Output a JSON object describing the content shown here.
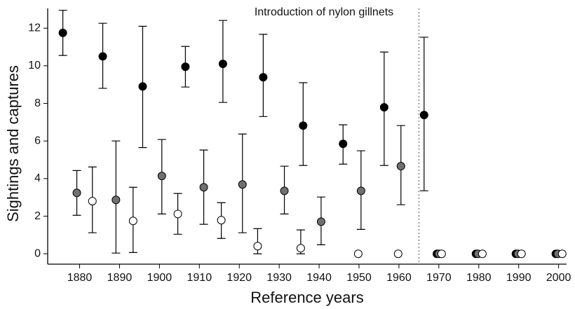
{
  "chart_data": {
    "type": "scatter",
    "xlabel": "Reference years",
    "ylabel": "Sightings and captures",
    "annotation": "Introduction of nylon gillnets",
    "vline": 1965,
    "xlim": [
      1872,
      2002
    ],
    "ylim": [
      -0.55,
      13.05
    ],
    "xticks": [
      1880,
      1890,
      1900,
      1910,
      1920,
      1930,
      1940,
      1950,
      1960,
      1970,
      1980,
      1990,
      2000
    ],
    "yticks": [
      0,
      2,
      4,
      6,
      8,
      10,
      12
    ],
    "series": [
      {
        "color": "#000000",
        "x": [
          1875.8,
          1885.8,
          1895.8,
          1906.5,
          1915.9,
          1926,
          1936,
          1946,
          1956.3,
          1966.3,
          1969.5,
          1979.3,
          1989.3,
          1999.3
        ],
        "values": [
          11.75,
          10.5,
          8.9,
          9.95,
          10.1,
          9.39,
          6.82,
          5.85,
          7.79,
          7.38,
          0,
          0,
          0,
          0
        ],
        "low": [
          10.55,
          8.8,
          5.65,
          8.87,
          8.05,
          7.3,
          4.7,
          4.77,
          4.7,
          3.35,
          null,
          null,
          null,
          null
        ],
        "high": [
          12.95,
          12.26,
          12.1,
          11.03,
          12.41,
          11.67,
          9.1,
          6.86,
          10.73,
          11.52,
          null,
          null,
          null,
          null
        ]
      },
      {
        "color": "#707070",
        "x": [
          1879.3,
          1889.1,
          1900.6,
          1911.1,
          1920.8,
          1931.3,
          1940.5,
          1950.5,
          1960.5,
          1970,
          1979.8,
          1989.8,
          1999.8
        ],
        "values": [
          3.24,
          2.87,
          4.14,
          3.54,
          3.69,
          3.35,
          1.71,
          3.35,
          4.66,
          0,
          0,
          0,
          0
        ],
        "low": [
          2.05,
          0.04,
          2.12,
          1.57,
          1.12,
          2.12,
          0.48,
          1.3,
          2.61,
          null,
          null,
          null,
          null
        ],
        "high": [
          4.43,
          6.0,
          6.08,
          5.52,
          6.37,
          4.66,
          3.02,
          5.48,
          6.82,
          null,
          null,
          null,
          null
        ]
      },
      {
        "color": "#ffffff",
        "x": [
          1883.2,
          1893.4,
          1904.6,
          1915.5,
          1924.6,
          1935.4,
          1949.8,
          1959.8,
          1970.7,
          1980.9,
          1990.7,
          2000.9
        ],
        "values": [
          2.8,
          1.75,
          2.12,
          1.79,
          0.41,
          0.3,
          0,
          0,
          0,
          0,
          0,
          0
        ],
        "low": [
          1.12,
          0.07,
          1.04,
          0.82,
          0,
          0,
          null,
          null,
          null,
          null,
          null,
          null
        ],
        "high": [
          4.62,
          3.54,
          3.21,
          2.72,
          1.34,
          1.27,
          null,
          null,
          null,
          null,
          null,
          null
        ]
      }
    ]
  }
}
